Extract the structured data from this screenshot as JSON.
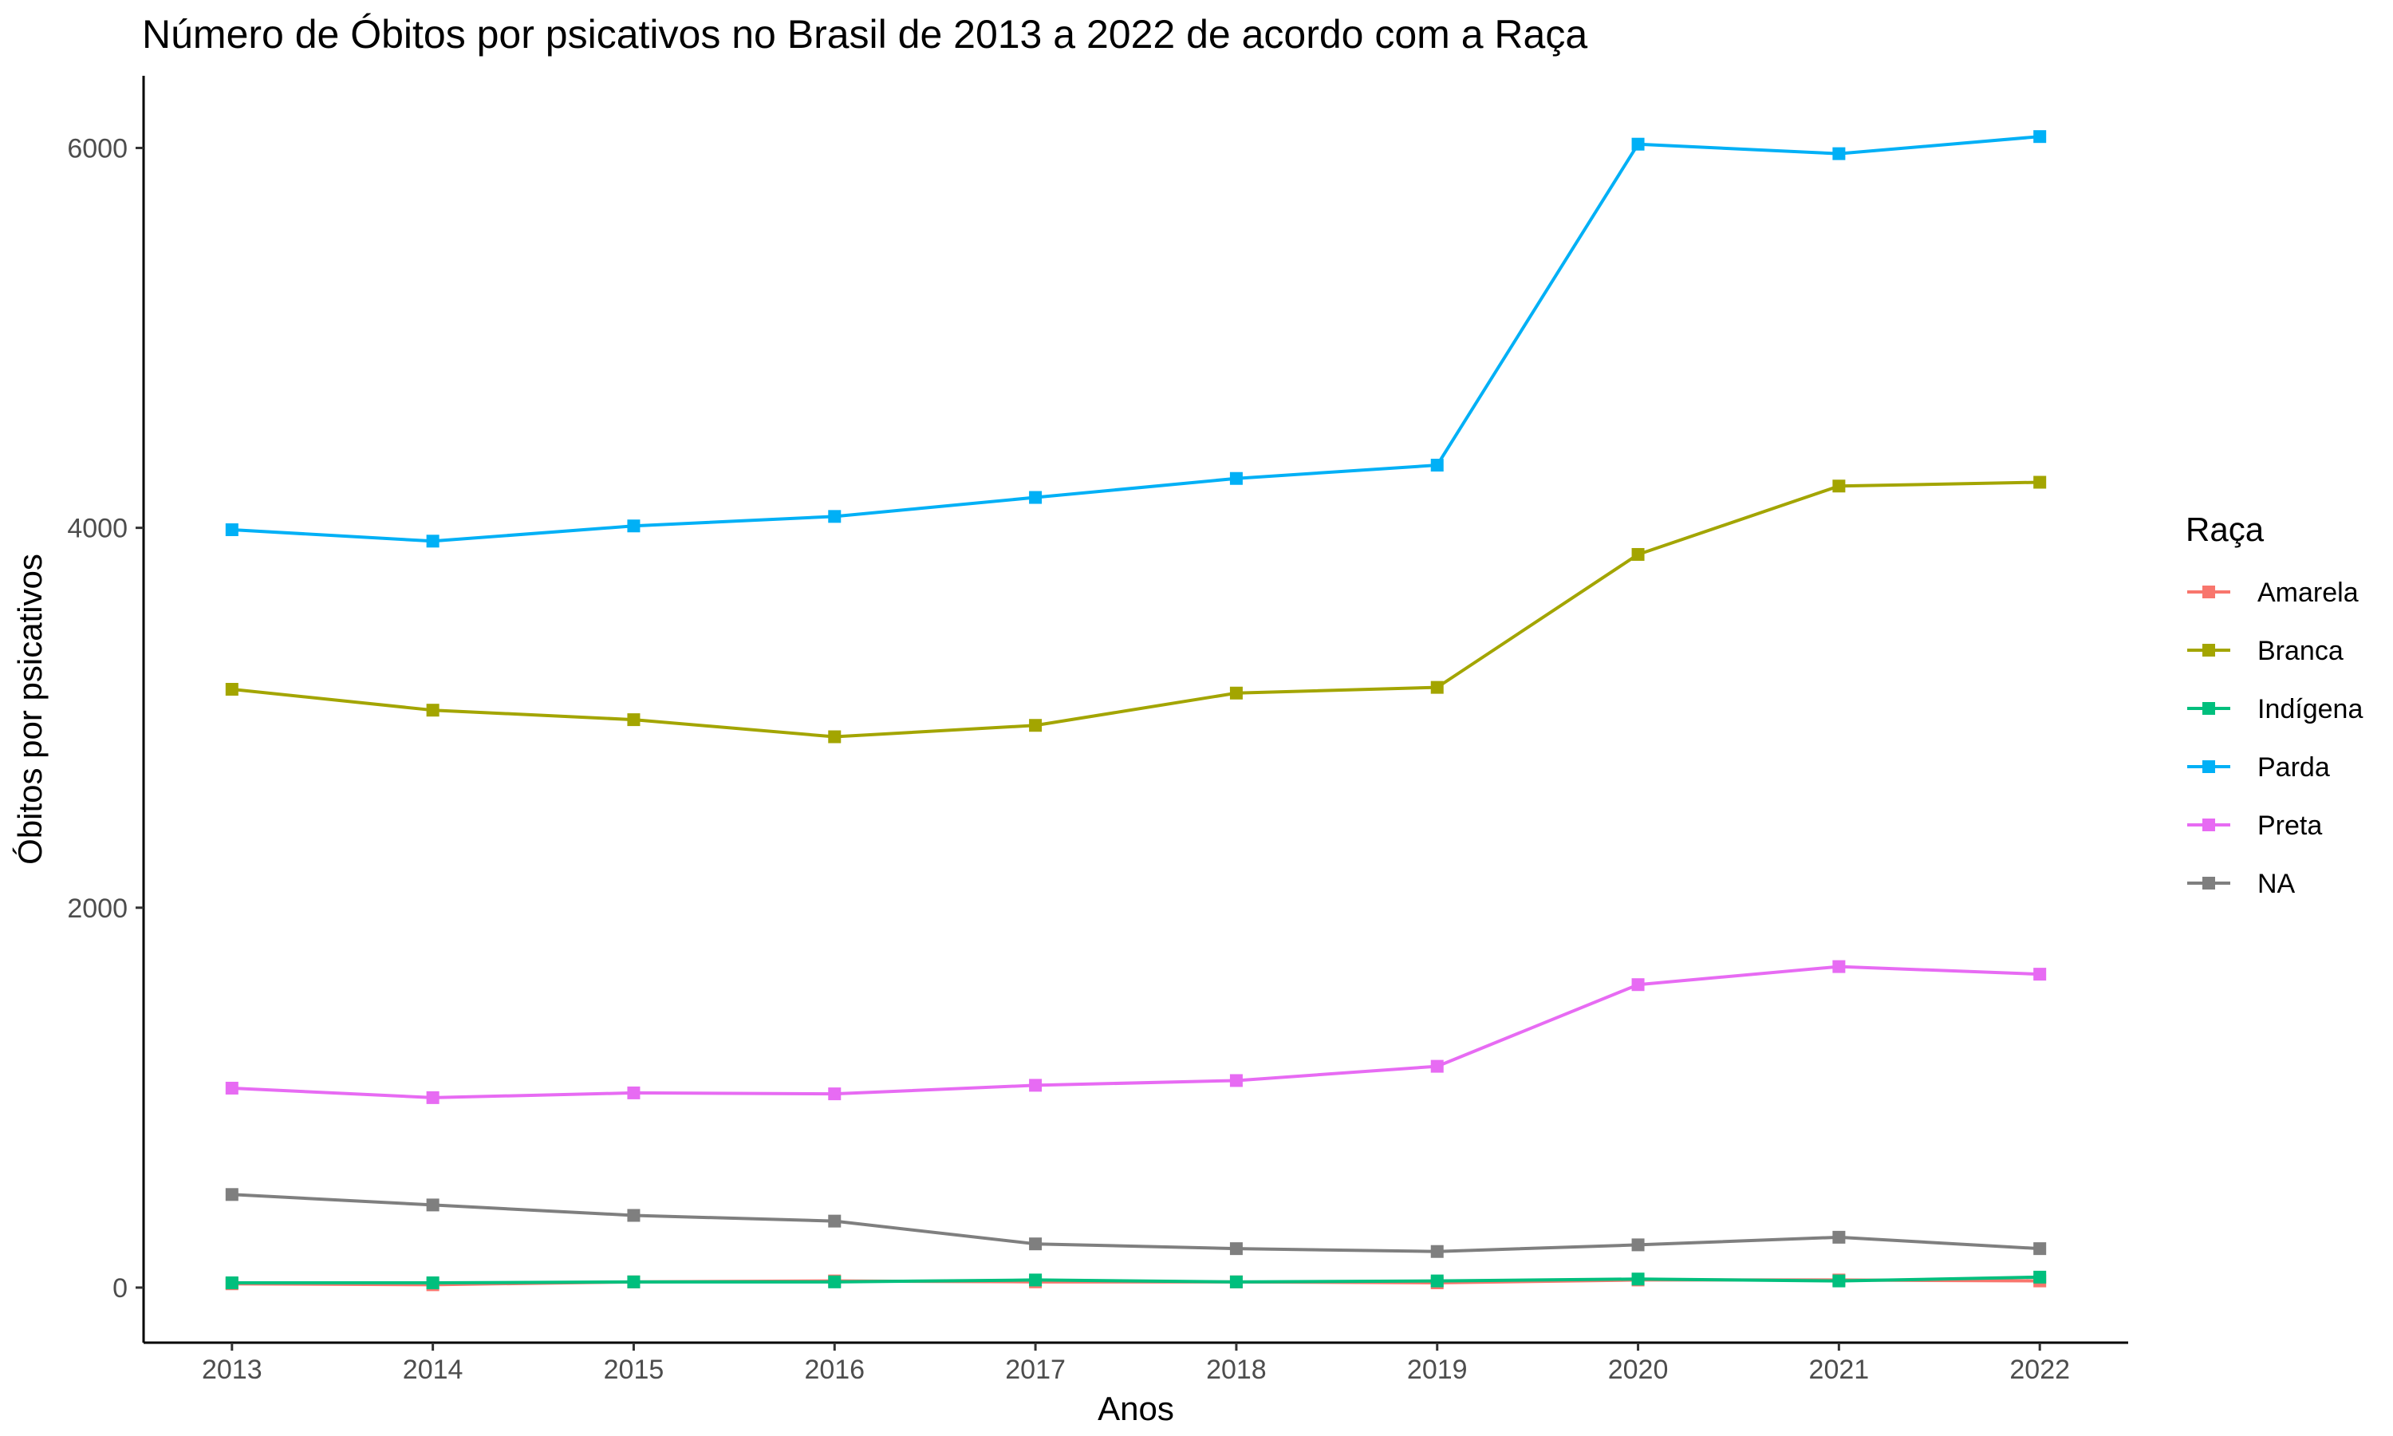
{
  "chart_data": {
    "type": "line",
    "title": "Número de Óbitos por psicativos no Brasil de 2013 a 2022 de acordo com a Raça",
    "xlabel": "Anos",
    "ylabel": "Óbitos por psicativos",
    "x": [
      "2013",
      "2014",
      "2015",
      "2016",
      "2017",
      "2018",
      "2019",
      "2020",
      "2021",
      "2022"
    ],
    "xlim": [
      2012.56,
      2022.44
    ],
    "ylim": [
      -290,
      6380
    ],
    "yticks": [
      0,
      2000,
      4000,
      6000
    ],
    "ytick_labels": [
      "0",
      "2000",
      "4000",
      "6000"
    ],
    "grid": false,
    "legend": {
      "title": "Raça",
      "position": "right"
    },
    "series": [
      {
        "name": "Amarela",
        "color": "#F8766D",
        "values": [
          20,
          15,
          30,
          35,
          30,
          30,
          25,
          40,
          40,
          35
        ]
      },
      {
        "name": "Branca",
        "color": "#A3A500",
        "values": [
          3150,
          3040,
          2990,
          2900,
          2960,
          3130,
          3160,
          3860,
          4220,
          4240
        ]
      },
      {
        "name": "Indígena",
        "color": "#00BF7D",
        "values": [
          25,
          25,
          30,
          30,
          40,
          30,
          35,
          45,
          35,
          55
        ]
      },
      {
        "name": "Parda",
        "color": "#00B0F6",
        "values": [
          3990,
          3930,
          4010,
          4060,
          4160,
          4260,
          4330,
          6020,
          5970,
          6060
        ]
      },
      {
        "name": "Preta",
        "color": "#E76BF3",
        "values": [
          1050,
          1000,
          1025,
          1020,
          1065,
          1090,
          1165,
          1595,
          1690,
          1650
        ]
      },
      {
        "name": "NA",
        "color": "#7F7F7F",
        "values": [
          490,
          435,
          380,
          350,
          230,
          205,
          190,
          225,
          265,
          205
        ]
      }
    ]
  }
}
